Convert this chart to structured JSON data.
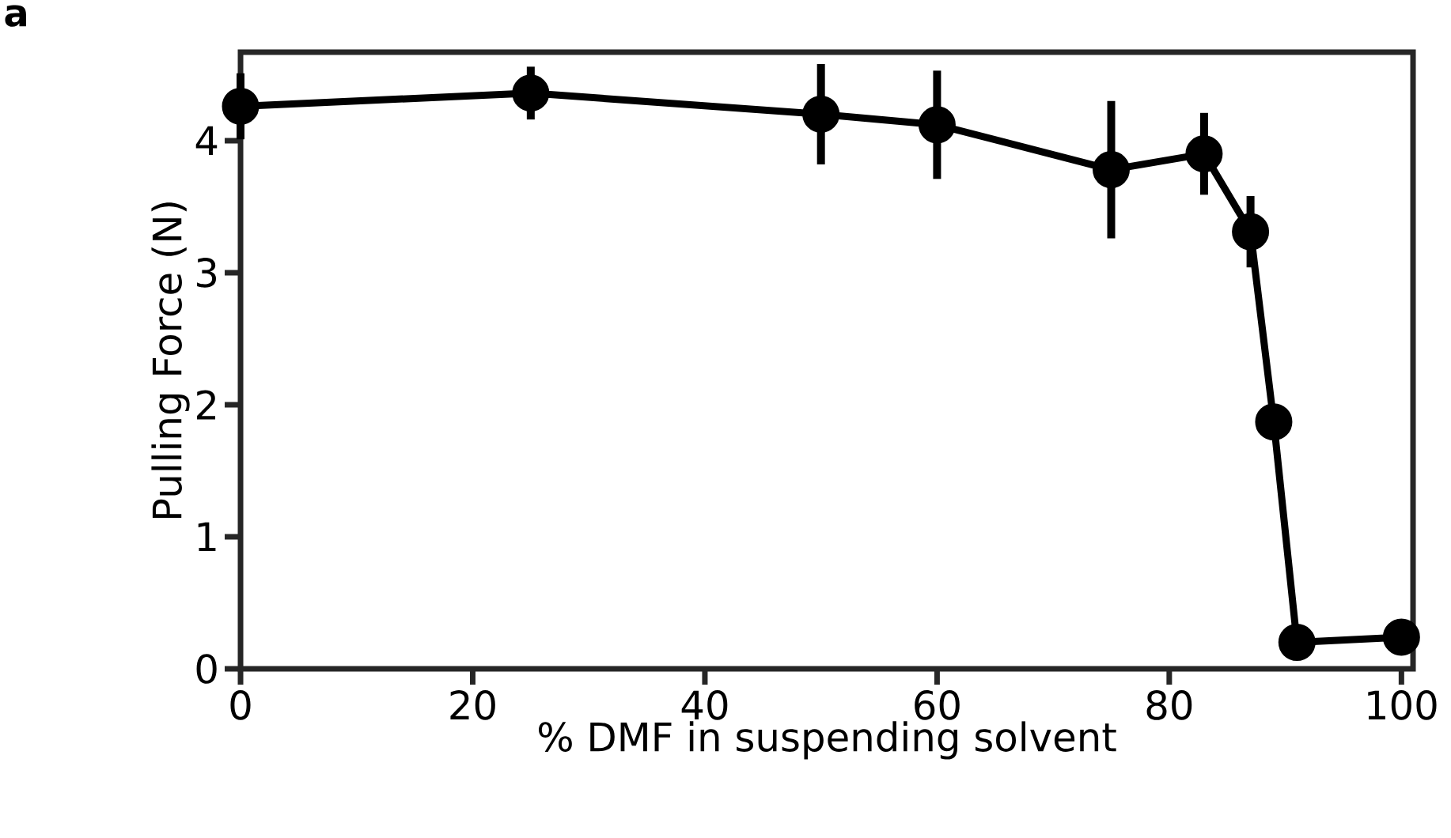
{
  "chart_data": {
    "type": "line",
    "xlabel": "% DMF in suspending solvent",
    "ylabel": "Pulling Force (N)",
    "annotations": [
      "a"
    ],
    "x": [
      0,
      25,
      50,
      60,
      75,
      83,
      87,
      89,
      91,
      100
    ],
    "series": [
      {
        "color": "#000000",
        "values": [
          4.26,
          4.36,
          4.2,
          4.12,
          3.78,
          3.9,
          3.31,
          1.87,
          0.2,
          0.24
        ],
        "errors": [
          0.25,
          0.2,
          0.38,
          0.41,
          0.52,
          0.31,
          0.27,
          null,
          null,
          null
        ]
      }
    ],
    "marker": "circle",
    "line_style": "solid",
    "xlim": [
      0,
      101
    ],
    "ylim": [
      0,
      4.67
    ],
    "xticks": [
      0,
      20,
      40,
      60,
      80,
      100
    ],
    "yticks": [
      0,
      1,
      2,
      3,
      4
    ]
  }
}
